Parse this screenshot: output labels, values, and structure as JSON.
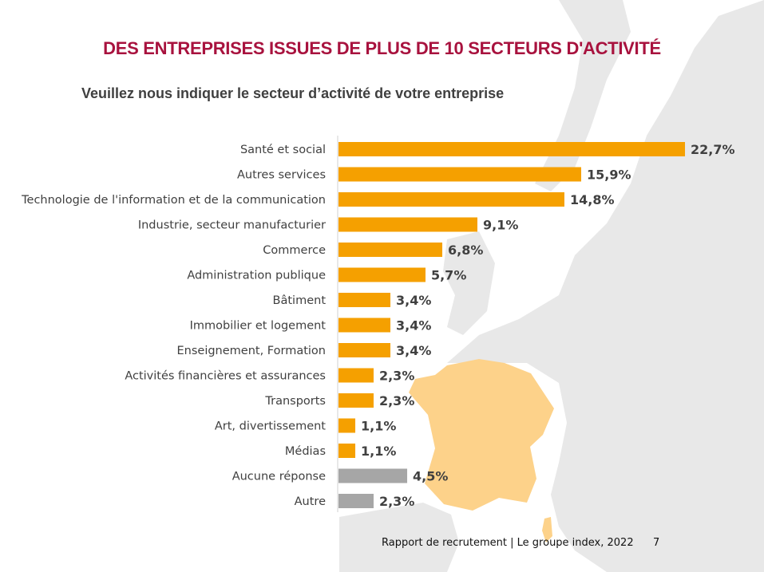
{
  "header": {
    "title": "DES ENTREPRISES ISSUES DE PLUS DE 10 SECTEURS D'ACTIVITÉ",
    "subtitle": "Veuillez nous indiquer le secteur d’activité de votre entreprise"
  },
  "footer": {
    "text": "Rapport de recrutement | Le groupe index, 2022",
    "page": "7"
  },
  "colors": {
    "title": "#A8123E",
    "bar": "#F5A000",
    "bar_no_answer": "#A6A6A6",
    "france": "#FDD28A",
    "map": "#E8E8E8"
  },
  "chart_data": {
    "type": "bar",
    "orientation": "horizontal",
    "title": "Veuillez nous indiquer le secteur d’activité de votre entreprise",
    "categories": [
      "Santé et social",
      "Autres services",
      "Technologie de l'information et de la communication",
      "Industrie, secteur manufacturier",
      "Commerce",
      "Administration publique",
      "Bâtiment",
      "Immobilier et logement",
      "Enseignement, Formation",
      "Activités financières et assurances",
      "Transports",
      "Art, divertissement",
      "Médias",
      "Aucune réponse",
      "Autre"
    ],
    "values": [
      22.7,
      15.9,
      14.8,
      9.1,
      6.8,
      5.7,
      3.4,
      3.4,
      3.4,
      2.3,
      2.3,
      1.1,
      1.1,
      4.5,
      2.3
    ],
    "labels": [
      "22,7%",
      "15,9%",
      "14,8%",
      "9,1%",
      "6,8%",
      "5,7%",
      "3,4%",
      "3,4%",
      "3,4%",
      "2,3%",
      "2,3%",
      "1,1%",
      "1,1%",
      "4,5%",
      "2,3%"
    ],
    "bar_colors": [
      "#F5A000",
      "#F5A000",
      "#F5A000",
      "#F5A000",
      "#F5A000",
      "#F5A000",
      "#F5A000",
      "#F5A000",
      "#F5A000",
      "#F5A000",
      "#F5A000",
      "#F5A000",
      "#F5A000",
      "#A6A6A6",
      "#A6A6A6"
    ],
    "unit": "%",
    "grid": false,
    "legend": "none"
  }
}
